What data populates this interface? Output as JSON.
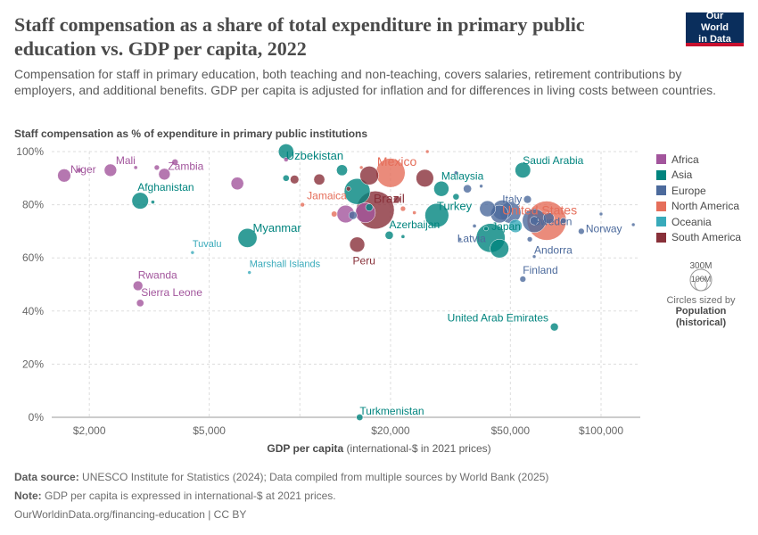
{
  "header": {
    "title": "Staff compensation as a share of total expenditure in primary public education vs. GDP per capita, 2022",
    "subtitle": "Compensation for staff in primary education, both teaching and non-teaching, covers salaries, retirement contributions by employers, and additional benefits. GDP per capita is adjusted for inflation and for differences in living costs between countries.",
    "logo_line1": "Our World",
    "logo_line2": "in Data"
  },
  "legend": {
    "items": [
      {
        "label": "Africa",
        "color": "#a2559c"
      },
      {
        "label": "Asia",
        "color": "#00847e"
      },
      {
        "label": "Europe",
        "color": "#4c6a9c"
      },
      {
        "label": "North America",
        "color": "#e56e5a"
      },
      {
        "label": "Oceania",
        "color": "#38aaba"
      },
      {
        "label": "South America",
        "color": "#883039"
      }
    ],
    "size_big": "300M",
    "size_small": "100M",
    "size_caption": "Circles sized by",
    "size_var": "Population",
    "size_var_note": "(historical)"
  },
  "footer": {
    "source_label": "Data source:",
    "source_text": "UNESCO Institute for Statistics (2024); Data compiled from multiple sources by World Bank (2025)",
    "note_label": "Note:",
    "note_text": "GDP per capita is expressed in international-$ at 2021 prices.",
    "credit": "OurWorldinData.org/financing-education | CC BY"
  },
  "chart_data": {
    "type": "scatter",
    "title": "Staff compensation as a share of total expenditure in primary public education vs. GDP per capita, 2022",
    "ylabel": "Staff compensation as % of expenditure in primary public institutions",
    "xlabel_bold": "GDP per capita",
    "xlabel_rest": "(international-$ in 2021 prices)",
    "xscale": "log",
    "xlim": [
      1500,
      135000
    ],
    "ylim": [
      0,
      100
    ],
    "xticks": [
      {
        "value": 2000,
        "label": "$2,000"
      },
      {
        "value": 5000,
        "label": "$5,000"
      },
      {
        "value": 10000,
        "label": ""
      },
      {
        "value": 20000,
        "label": "$20,000"
      },
      {
        "value": 50000,
        "label": "$50,000"
      },
      {
        "value": 100000,
        "label": "$100,000"
      }
    ],
    "yticks": [
      {
        "value": 0,
        "label": "0%"
      },
      {
        "value": 20,
        "label": "20%"
      },
      {
        "value": 40,
        "label": "40%"
      },
      {
        "value": 60,
        "label": "60%"
      },
      {
        "value": 80,
        "label": "80%"
      },
      {
        "value": 100,
        "label": "100%"
      }
    ],
    "points": [
      {
        "name": "Niger",
        "region": "Africa",
        "gdp": 1650,
        "share": 91,
        "pop": 26,
        "label": true
      },
      {
        "name": "Mali",
        "region": "Africa",
        "gdp": 2350,
        "share": 93,
        "pop": 23,
        "label": true
      },
      {
        "name": "Zambia",
        "region": "Africa",
        "gdp": 3550,
        "share": 91.5,
        "pop": 20,
        "label": true
      },
      {
        "name": "Rwanda",
        "region": "Africa",
        "gdp": 2900,
        "share": 49.5,
        "pop": 14,
        "label": true
      },
      {
        "name": "Sierra Leone",
        "region": "Africa",
        "gdp": 2950,
        "share": 43,
        "pop": 8,
        "label": true
      },
      {
        "name": "Afghanistan",
        "region": "Asia",
        "gdp": 2950,
        "share": 81.5,
        "pop": 41,
        "label": true
      },
      {
        "name": "Tuvalu",
        "region": "Oceania",
        "gdp": 4400,
        "share": 62,
        "pop": 0.2,
        "label": true
      },
      {
        "name": "Marshall Islands",
        "region": "Oceania",
        "gdp": 6800,
        "share": 54.5,
        "pop": 0.4,
        "label": true
      },
      {
        "name": "Myanmar",
        "region": "Asia",
        "gdp": 6700,
        "share": 67.5,
        "pop": 54,
        "label": true
      },
      {
        "name": "Uzbekistan",
        "region": "Asia",
        "gdp": 9000,
        "share": 100,
        "pop": 35,
        "label": true
      },
      {
        "name": "Jamaica",
        "region": "North America",
        "gdp": 10200,
        "share": 80,
        "pop": 2.8,
        "label": true
      },
      {
        "name": "Brazil",
        "region": "South America",
        "gdp": 17800,
        "share": 78,
        "pop": 215,
        "label": true
      },
      {
        "name": "Mexico",
        "region": "North America",
        "gdp": 20000,
        "share": 92,
        "pop": 127,
        "label": true
      },
      {
        "name": "Peru",
        "region": "South America",
        "gdp": 15500,
        "share": 65,
        "pop": 34,
        "label": true
      },
      {
        "name": "Azerbaijan",
        "region": "Asia",
        "gdp": 19800,
        "share": 68.5,
        "pop": 10,
        "label": true
      },
      {
        "name": "Turkmenistan",
        "region": "Asia",
        "gdp": 15800,
        "share": 0,
        "pop": 6.4,
        "label": true
      },
      {
        "name": "Malaysia",
        "region": "Asia",
        "gdp": 29500,
        "share": 86,
        "pop": 34,
        "label": true
      },
      {
        "name": "Turkey",
        "region": "Asia",
        "gdp": 28500,
        "share": 76,
        "pop": 85,
        "label": true
      },
      {
        "name": "Latvia",
        "region": "Europe",
        "gdp": 34000,
        "share": 67,
        "pop": 1.9,
        "label": true
      },
      {
        "name": "Italy",
        "region": "Europe",
        "gdp": 47000,
        "share": 78,
        "pop": 59,
        "label": true
      },
      {
        "name": "Japan",
        "region": "Asia",
        "gdp": 43000,
        "share": 67.5,
        "pop": 125,
        "label": true
      },
      {
        "name": "Saudi Arabia",
        "region": "Asia",
        "gdp": 55000,
        "share": 93,
        "pop": 36,
        "label": true
      },
      {
        "name": "United States",
        "region": "North America",
        "gdp": 66000,
        "share": 74,
        "pop": 335,
        "label": true
      },
      {
        "name": "Sweden",
        "region": "Europe",
        "gdp": 60000,
        "share": 74,
        "pop": 10.5,
        "label": true
      },
      {
        "name": "Norway",
        "region": "Europe",
        "gdp": 86000,
        "share": 70,
        "pop": 5.5,
        "label": true
      },
      {
        "name": "Andorra",
        "region": "Europe",
        "gdp": 60000,
        "share": 60.5,
        "pop": 0.08,
        "label": true
      },
      {
        "name": "Finland",
        "region": "Europe",
        "gdp": 55000,
        "share": 52,
        "pop": 5.5,
        "label": true
      },
      {
        "name": "United Arab Emirates",
        "region": "Asia",
        "gdp": 70000,
        "share": 34,
        "pop": 9.4,
        "label": true
      },
      {
        "name": "",
        "region": "Africa",
        "gdp": 1850,
        "share": 93,
        "pop": 3,
        "label": false
      },
      {
        "name": "",
        "region": "Africa",
        "gdp": 2850,
        "share": 94,
        "pop": 2,
        "label": false
      },
      {
        "name": "",
        "region": "Africa",
        "gdp": 3350,
        "share": 94,
        "pop": 4,
        "label": false
      },
      {
        "name": "",
        "region": "Africa",
        "gdp": 3850,
        "share": 96,
        "pop": 6,
        "label": false
      },
      {
        "name": "",
        "region": "Africa",
        "gdp": 6200,
        "share": 88,
        "pop": 24,
        "label": false
      },
      {
        "name": "",
        "region": "Africa",
        "gdp": 9000,
        "share": 97,
        "pop": 3,
        "label": false
      },
      {
        "name": "",
        "region": "Africa",
        "gdp": 14200,
        "share": 76.5,
        "pop": 46,
        "label": false
      },
      {
        "name": "",
        "region": "Africa",
        "gdp": 16500,
        "share": 77,
        "pop": 60,
        "label": false
      },
      {
        "name": "",
        "region": "Asia",
        "gdp": 3250,
        "share": 81,
        "pop": 2,
        "label": false
      },
      {
        "name": "",
        "region": "Asia",
        "gdp": 9000,
        "share": 90,
        "pop": 6,
        "label": false
      },
      {
        "name": "",
        "region": "Asia",
        "gdp": 13800,
        "share": 93,
        "pop": 18,
        "label": false
      },
      {
        "name": "",
        "region": "Asia",
        "gdp": 15500,
        "share": 85,
        "pop": 100,
        "label": false
      },
      {
        "name": "",
        "region": "Asia",
        "gdp": 17000,
        "share": 79,
        "pop": 8,
        "label": false
      },
      {
        "name": "",
        "region": "Asia",
        "gdp": 22000,
        "share": 68,
        "pop": 2,
        "label": false
      },
      {
        "name": "",
        "region": "Asia",
        "gdp": 33000,
        "share": 83,
        "pop": 6,
        "label": false
      },
      {
        "name": "",
        "region": "Asia",
        "gdp": 46000,
        "share": 63.5,
        "pop": 52,
        "label": false
      },
      {
        "name": "",
        "region": "Asia",
        "gdp": 41500,
        "share": 71,
        "pop": 3,
        "label": false
      },
      {
        "name": "",
        "region": "Europe",
        "gdp": 15000,
        "share": 76,
        "pop": 10,
        "label": false
      },
      {
        "name": "",
        "region": "Europe",
        "gdp": 33000,
        "share": 92,
        "pop": 2,
        "label": false
      },
      {
        "name": "",
        "region": "Europe",
        "gdp": 36000,
        "share": 86,
        "pop": 10,
        "label": false
      },
      {
        "name": "",
        "region": "Europe",
        "gdp": 40000,
        "share": 87,
        "pop": 1,
        "label": false
      },
      {
        "name": "",
        "region": "Europe",
        "gdp": 42000,
        "share": 78.5,
        "pop": 38,
        "label": false
      },
      {
        "name": "",
        "region": "Europe",
        "gdp": 46000,
        "share": 76.5,
        "pop": 47,
        "label": false
      },
      {
        "name": "",
        "region": "Europe",
        "gdp": 50000,
        "share": 77,
        "pop": 67,
        "label": false
      },
      {
        "name": "",
        "region": "Europe",
        "gdp": 60000,
        "share": 74,
        "pop": 84,
        "label": false
      },
      {
        "name": "",
        "region": "Europe",
        "gdp": 57000,
        "share": 82,
        "pop": 9,
        "label": false
      },
      {
        "name": "",
        "region": "Europe",
        "gdp": 67000,
        "share": 75,
        "pop": 18,
        "label": false
      },
      {
        "name": "",
        "region": "Europe",
        "gdp": 75000,
        "share": 74,
        "pop": 5,
        "label": false
      },
      {
        "name": "",
        "region": "Europe",
        "gdp": 100000,
        "share": 76.5,
        "pop": 1,
        "label": false
      },
      {
        "name": "",
        "region": "Europe",
        "gdp": 128000,
        "share": 72.5,
        "pop": 0.6,
        "label": false
      },
      {
        "name": "",
        "region": "Europe",
        "gdp": 38000,
        "share": 72,
        "pop": 2,
        "label": false
      },
      {
        "name": "",
        "region": "Europe",
        "gdp": 58000,
        "share": 67,
        "pop": 4,
        "label": false
      },
      {
        "name": "",
        "region": "North America",
        "gdp": 13000,
        "share": 76.5,
        "pop": 5,
        "label": false
      },
      {
        "name": "",
        "region": "North America",
        "gdp": 16000,
        "share": 94,
        "pop": 1,
        "label": false
      },
      {
        "name": "",
        "region": "North America",
        "gdp": 22000,
        "share": 78.5,
        "pop": 4,
        "label": false
      },
      {
        "name": "",
        "region": "North America",
        "gdp": 24000,
        "share": 77,
        "pop": 2,
        "label": false
      },
      {
        "name": "",
        "region": "North America",
        "gdp": 26500,
        "share": 100,
        "pop": 0.3,
        "label": false
      },
      {
        "name": "",
        "region": "Oceania",
        "gdp": 52000,
        "share": 72,
        "pop": 26,
        "label": false
      },
      {
        "name": "",
        "region": "South America",
        "gdp": 9600,
        "share": 89.5,
        "pop": 11,
        "label": false
      },
      {
        "name": "",
        "region": "South America",
        "gdp": 11600,
        "share": 89.5,
        "pop": 18,
        "label": false
      },
      {
        "name": "",
        "region": "South America",
        "gdp": 17000,
        "share": 91,
        "pop": 52,
        "label": false
      },
      {
        "name": "",
        "region": "South America",
        "gdp": 26000,
        "share": 90,
        "pop": 46,
        "label": false
      },
      {
        "name": "",
        "region": "South America",
        "gdp": 21000,
        "share": 82,
        "pop": 7,
        "label": false
      },
      {
        "name": "",
        "region": "South America",
        "gdp": 14500,
        "share": 86,
        "pop": 3,
        "label": false
      }
    ]
  }
}
